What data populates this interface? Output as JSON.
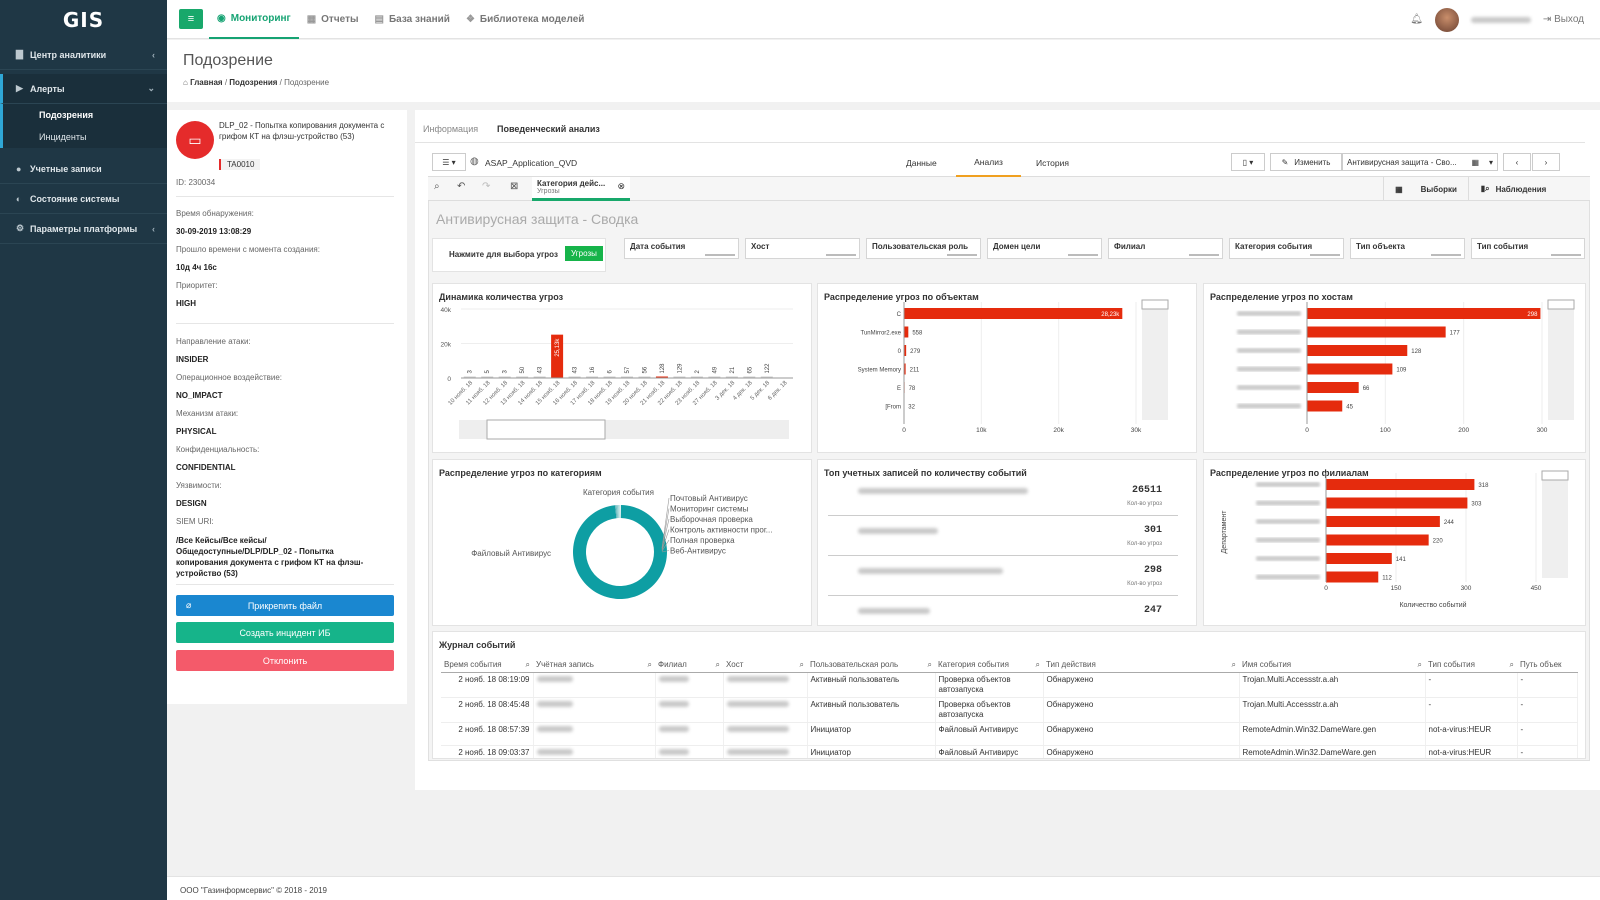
{
  "app": {
    "logo": "GIS"
  },
  "sidebar": {
    "items": [
      {
        "label": "Центр аналитики",
        "icon": "bar-chart-icon",
        "chevron": "‹"
      },
      {
        "label": "Алерты",
        "icon": "bell-icon",
        "chevron": "⌄"
      },
      {
        "label": "Учетные записи",
        "icon": "users-icon"
      },
      {
        "label": "Состояние системы",
        "icon": "dashboard-icon"
      },
      {
        "label": "Параметры платформы",
        "icon": "gears-icon",
        "chevron": "‹"
      }
    ],
    "subitems": [
      {
        "label": "Подозрения"
      },
      {
        "label": "Инциденты"
      }
    ]
  },
  "topnav": {
    "menu_icon": "≡",
    "items": [
      {
        "label": "Мониторинг",
        "icon": "eye-icon"
      },
      {
        "label": "Отчеты",
        "icon": "table-icon"
      },
      {
        "label": "База знаний",
        "icon": "book-icon"
      },
      {
        "label": "Библиотека моделей",
        "icon": "cubes-icon"
      }
    ],
    "logout": "Выход"
  },
  "page": {
    "title": "Подозрение",
    "breadcrumbs": [
      "Главная",
      "Подозрения",
      "Подозрение"
    ]
  },
  "alert": {
    "title": "DLP_02 - Попытка копирования документа с грифом КТ на флэш-устройство (53)",
    "tag": "TA0010",
    "id_line": "ID: 230034",
    "fields": [
      {
        "label": "Время обнаружения:",
        "value": "30-09-2019 13:08:29"
      },
      {
        "label": "Прошло времени с момента создания:",
        "value": "10д 4ч 16с"
      },
      {
        "label": "Приоритет:",
        "value": "HIGH"
      },
      {
        "label": "Направление атаки:",
        "value": "INSIDER"
      },
      {
        "label": "Операционное воздействие:",
        "value": "NO_IMPACT"
      },
      {
        "label": "Механизм атаки:",
        "value": "PHYSICAL"
      },
      {
        "label": "Конфиденциальность:",
        "value": "CONFIDENTIAL"
      },
      {
        "label": "Уязвимости:",
        "value": "DESIGN"
      }
    ],
    "siem_label": "SIEM URI:",
    "siem_value": "/Все Кейсы/Все кейсы/Общедоступные/DLP/DLP_02 - Попытка копирования документа с грифом КТ на флэш-устройство (53)",
    "buttons": {
      "attach": "Прикрепить файл",
      "create": "Создать инцидент ИБ",
      "reject": "Отклонить"
    }
  },
  "tabs": [
    "Информация",
    "Поведенческий анализ"
  ],
  "qlik": {
    "app_name": "ASAP_Application_QVD",
    "nav": [
      "Данные",
      "Анализ",
      "История"
    ],
    "edit": "Изменить",
    "sheet_name": "Антивирусная защита - Сво...",
    "selection_title": "Категория дейс...",
    "selection_value": "Угрозы",
    "selections_btn": "Выборки",
    "watch_btn": "Наблюдения",
    "sheet_title": "Антивирусная защита - Сводка",
    "threat_prompt": "Нажмите для выбора угроз",
    "threat_button": "Угрозы",
    "filters": [
      "Дата события",
      "Хост",
      "Пользовательская роль",
      "Домен цели",
      "Филиал",
      "Категория события",
      "Тип объекта",
      "Тип события"
    ]
  },
  "charts": {
    "dynamics_title": "Динамика количества угроз",
    "objects_title": "Распределение угроз по объектам",
    "hosts_title": "Распределение угроз по хостам",
    "categories_title": "Распределение угроз по категориям",
    "categories_subtitle": "Категория события",
    "top_accounts_title": "Топ учетных записей по количеству событий",
    "branches_title": "Распределение угроз по филиалам",
    "branches_ylabel": "Департамент",
    "branches_xlabel": "Количество событий",
    "count_label": "Кол-во угроз"
  },
  "chart_data": [
    {
      "type": "bar",
      "title": "Динамика количества угроз",
      "categories": [
        "10 нояб. 18",
        "11 нояб. 18",
        "12 нояб. 18",
        "13 нояб. 18",
        "14 нояб. 18",
        "15 нояб. 18",
        "16 нояб. 18",
        "17 нояб. 18",
        "18 нояб. 18",
        "19 нояб. 18",
        "20 нояб. 18",
        "21 нояб. 18",
        "22 нояб. 18",
        "23 нояб. 18",
        "27 нояб. 18",
        "3 дек. 18",
        "4 дек. 18",
        "5 дек. 18",
        "6 дек. 18"
      ],
      "values": [
        3,
        5,
        3,
        50,
        43,
        25131,
        43,
        16,
        6,
        57,
        56,
        128,
        129,
        2,
        49,
        21,
        65,
        122,
        0
      ],
      "bar_labels": [
        "3",
        "5",
        "3",
        "50",
        "43",
        "25,13k",
        "43",
        "16",
        "6",
        "57",
        "56",
        "128",
        "129",
        "2",
        "49",
        "21",
        "65",
        "122",
        ""
      ],
      "highlight": [
        5,
        11
      ],
      "yticks": [
        "40k",
        "20k",
        "0"
      ],
      "ylim": [
        0,
        40000
      ]
    },
    {
      "type": "bar",
      "orientation": "horizontal",
      "title": "Распределение угроз по объектам",
      "categories": [
        "C",
        "TunMirror2.exe",
        "0",
        "System Memory",
        "E",
        "[From"
      ],
      "values": [
        28230,
        558,
        279,
        211,
        78,
        32
      ],
      "labels": [
        "28,23k",
        "558",
        "279",
        "211",
        "78",
        "32"
      ],
      "xticks": [
        "0",
        "10k",
        "20k",
        "30k"
      ],
      "xlim": [
        0,
        30000
      ]
    },
    {
      "type": "bar",
      "orientation": "horizontal",
      "title": "Распределение угроз по хостам",
      "values": [
        298,
        177,
        128,
        109,
        66,
        45
      ],
      "xticks": [
        "0",
        "100",
        "200",
        "300"
      ],
      "xlim": [
        0,
        300
      ]
    },
    {
      "type": "pie",
      "title": "Распределение угроз по категориям",
      "subtitle": "Категория события",
      "labels": [
        "Файловый Антивирус",
        "Почтовый Антивирус",
        "Мониторинг системы",
        "Выборочная проверка",
        "Контроль активности прог...",
        "Полная проверка",
        "Веб-Антивирус"
      ],
      "values": [
        98,
        0.4,
        0.4,
        0.4,
        0.3,
        0.3,
        0.2
      ]
    },
    {
      "type": "table",
      "title": "Топ учетных записей по количеству событий",
      "values": [
        "26511",
        "301",
        "298",
        "247"
      ]
    },
    {
      "type": "bar",
      "orientation": "horizontal",
      "title": "Распределение угроз по филиалам",
      "values": [
        318,
        303,
        244,
        220,
        141,
        112
      ],
      "xticks": [
        "0",
        "150",
        "300",
        "450"
      ],
      "xlim": [
        0,
        450
      ],
      "xlabel": "Количество событий",
      "ylabel": "Департамент"
    }
  ],
  "log": {
    "title": "Журнал событий",
    "columns": [
      "Время события",
      "Учётная запись",
      "Филиал",
      "Хост",
      "Пользовательская роль",
      "Категория события",
      "Тип действия",
      "Имя события",
      "Тип события",
      "Путь объек"
    ],
    "rows": [
      {
        "time": "2 нояб. 18 08:19:09",
        "role": "Активный пользователь",
        "cat": "Проверка объектов автозапуска",
        "action": "Обнаружено",
        "name": "Trojan.Multi.Accessstr.a.ah",
        "etype": "-",
        "path": "-"
      },
      {
        "time": "2 нояб. 18 08:45:48",
        "role": "Активный пользователь",
        "cat": "Проверка объектов автозапуска",
        "action": "Обнаружено",
        "name": "Trojan.Multi.Accessstr.a.ah",
        "etype": "-",
        "path": "-"
      },
      {
        "time": "2 нояб. 18 08:57:39",
        "role": "Инициатор",
        "cat": "Файловый Антивирус",
        "action": "Обнаружено",
        "name": "RemoteAdmin.Win32.DameWare.gen",
        "etype": "not-a-virus:HEUR",
        "path": "-"
      },
      {
        "time": "2 нояб. 18 09:03:37",
        "role": "Инициатор",
        "cat": "Файловый Антивирус",
        "action": "Обнаружено",
        "name": "RemoteAdmin.Win32.DameWare.gen",
        "etype": "not-a-virus:HEUR",
        "path": "-"
      }
    ]
  },
  "footer": "ООО \"Газинформсервис\" © 2018 - 2019",
  "colors": {
    "sidebar": "#1f3745",
    "accent": "#16a373",
    "bar": "#e52b0d",
    "donut": "#0e9ea3",
    "attach": "#1a87d0",
    "create": "#16b48a",
    "reject": "#f45a6a"
  }
}
